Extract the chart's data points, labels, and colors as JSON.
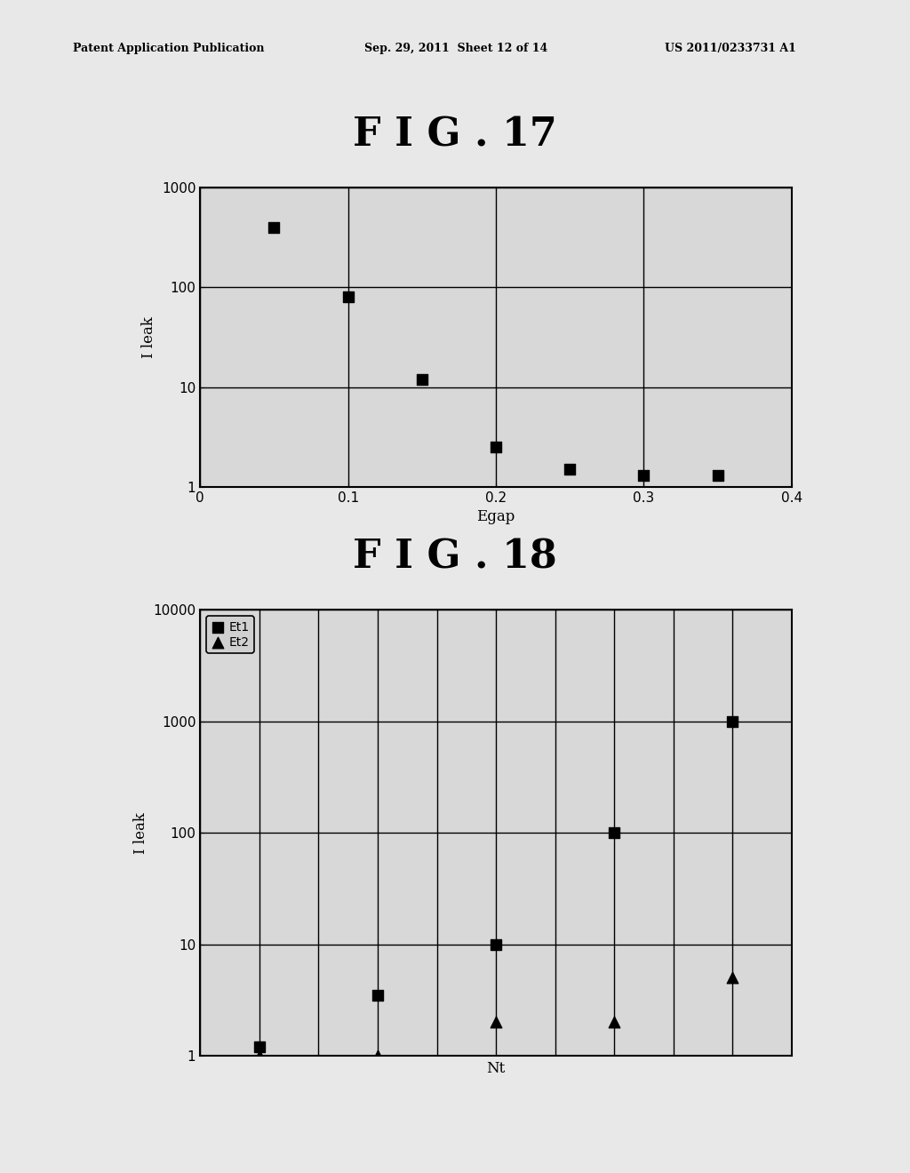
{
  "fig17": {
    "title": "F I G . 17",
    "xlabel": "Egap",
    "ylabel": "I leak",
    "x_data": [
      0.05,
      0.1,
      0.15,
      0.2,
      0.25,
      0.3,
      0.35
    ],
    "y_data": [
      400,
      80,
      12,
      2.5,
      1.5,
      1.3,
      1.3
    ],
    "xlim": [
      0,
      0.4
    ],
    "ylim": [
      1,
      1000
    ],
    "xticks": [
      0,
      0.1,
      0.2,
      0.3,
      0.4
    ],
    "yticks": [
      1,
      10,
      100,
      1000
    ],
    "marker": "s",
    "marker_color": "#000000",
    "marker_size": 9,
    "title_fontsize": 32,
    "label_fontsize": 12,
    "tick_fontsize": 11
  },
  "fig18": {
    "title": "F I G . 18",
    "xlabel": "Nt",
    "ylabel": "I leak",
    "et1_x": [
      1,
      2,
      3,
      4,
      5
    ],
    "et1_y": [
      1.2,
      3.5,
      10,
      100,
      1000
    ],
    "et2_x": [
      1,
      2,
      3,
      4,
      5
    ],
    "et2_y": [
      1.0,
      1.0,
      2.0,
      2.0,
      5.0
    ],
    "xlim": [
      0.5,
      5.5
    ],
    "ylim": [
      1,
      10000
    ],
    "yticks": [
      1,
      10,
      100,
      1000,
      10000
    ],
    "marker_et1": "s",
    "marker_et2": "^",
    "marker_color": "#000000",
    "marker_size": 9,
    "legend_labels": [
      "Et1",
      "Et2"
    ],
    "title_fontsize": 32,
    "label_fontsize": 12,
    "tick_fontsize": 11,
    "num_vertical_gridlines": 10
  },
  "page_header_left": "Patent Application Publication",
  "page_header_mid": "Sep. 29, 2011  Sheet 12 of 14",
  "page_header_right": "US 2011/0233731 A1",
  "bg_color": "#e8e8e8",
  "plot_bg_color": "#d8d8d8",
  "text_color": "#000000"
}
